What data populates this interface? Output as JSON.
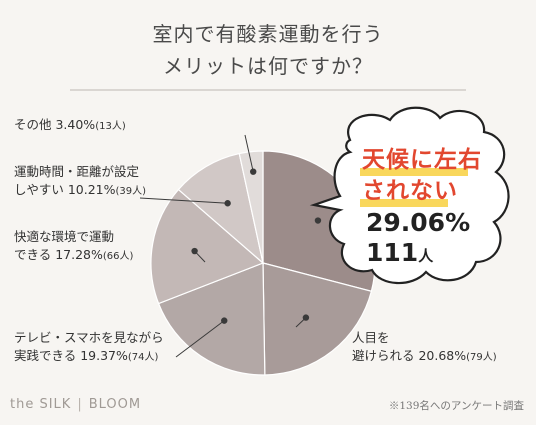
{
  "title": {
    "line1": "室内で有酸素運動を行う",
    "line2": "メリットは何ですか？"
  },
  "chart_data": {
    "type": "pie",
    "slices": [
      {
        "label": "天候に左右されない",
        "percent": 29.06,
        "count": 111,
        "color": "#9c8c8a"
      },
      {
        "label": "人目を避けられる",
        "percent": 20.68,
        "count": 79,
        "color": "#a89b99"
      },
      {
        "label": "テレビ・スマホを見ながら実践できる",
        "percent": 19.37,
        "count": 74,
        "color": "#b3a8a6"
      },
      {
        "label": "快適な環境で運動できる",
        "percent": 17.28,
        "count": 66,
        "color": "#c3b8b6"
      },
      {
        "label": "運動時間・距離が設定しやすい",
        "percent": 10.21,
        "count": 39,
        "color": "#d1c8c6"
      },
      {
        "label": "その他",
        "percent": 3.4,
        "count": 13,
        "color": "#e1dcda"
      }
    ]
  },
  "labels": {
    "other": {
      "text": "その他 3.40%",
      "count": "(13人)"
    },
    "distance_line1": "運動時間・距離が設定",
    "distance_line2": {
      "text": "しやすい 10.21%",
      "count": "(39人)"
    },
    "comfort_line1": "快適な環境で運動",
    "comfort_line2": {
      "text": "できる 17.28%",
      "count": "(66人)"
    },
    "tv_line1": "テレビ・スマホを見ながら",
    "tv_line2": {
      "text": "実践できる 19.37%",
      "count": "(74人)"
    },
    "avoid_line1": "人目を",
    "avoid_line2": {
      "text": "避けられる 20.68%",
      "count": "(79人)"
    }
  },
  "highlight": {
    "line1": "天候に左右",
    "line2": "されない",
    "percent": "29.06%",
    "count": "111",
    "unit": "人"
  },
  "footer": {
    "brand_left": "the SILK",
    "brand_sep": "|",
    "brand_right": "BLOOM",
    "note": "※139名へのアンケート調査"
  }
}
